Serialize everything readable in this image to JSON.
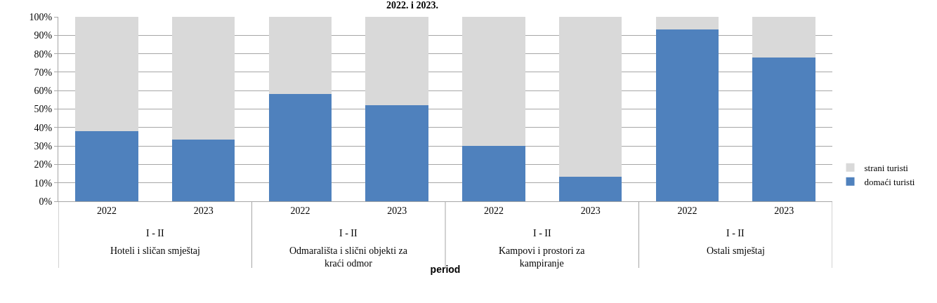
{
  "chart_data": {
    "type": "bar",
    "title": "2022. i 2023.",
    "xlabel": "period",
    "categories": [
      "2022",
      "2023",
      "2022",
      "2023",
      "2022",
      "2023",
      "2022",
      "2023"
    ],
    "annotations": [
      "I - II",
      "Hoteli i sličan smještaj",
      "I - II",
      "Odmarališta i slični objekti za kraći odmor",
      "I - II",
      "Kampovi i prostori za kampiranje",
      "I - II",
      "Ostali smještaj"
    ],
    "stacked": true,
    "series": [
      {
        "name": "domaći turisti",
        "color": "#4f81bd",
        "values": [
          38.2,
          33.3,
          58.3,
          52,
          30.2,
          13.2,
          93,
          78
        ]
      },
      {
        "name": "strani turisti",
        "color": "#d9d9d9",
        "values": [
          61.8,
          66.7,
          41.7,
          48,
          69.8,
          86.8,
          7,
          22
        ]
      }
    ],
    "ylim": [
      0,
      100
    ],
    "yticks": [
      {
        "value": 0,
        "label": "0%"
      },
      {
        "value": 10,
        "label": "10%"
      },
      {
        "value": 20,
        "label": "20%"
      },
      {
        "value": 30,
        "label": "30%"
      },
      {
        "value": 40,
        "label": "40%"
      },
      {
        "value": 50,
        "label": "50%"
      },
      {
        "value": 60,
        "label": "60%"
      },
      {
        "value": 70,
        "label": "70%"
      },
      {
        "value": 80,
        "label": "80%"
      },
      {
        "value": 90,
        "label": "90%"
      },
      {
        "value": 100,
        "label": "100%"
      }
    ],
    "grid": "y",
    "legend": "right"
  }
}
